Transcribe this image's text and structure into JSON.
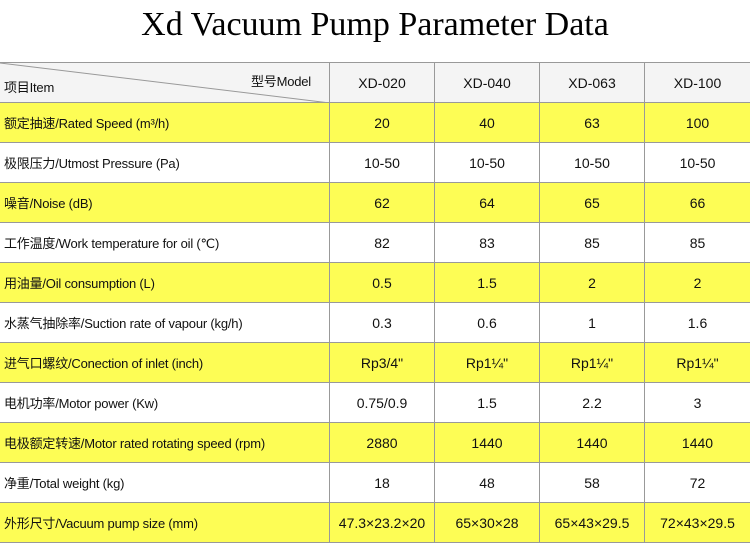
{
  "title": "Xd Vacuum Pump Parameter Data",
  "table": {
    "header": {
      "item": "项目Item",
      "model": "型号Model",
      "columns": [
        "XD-020",
        "XD-040",
        "XD-063",
        "XD-100"
      ]
    },
    "rows": [
      {
        "label": "额定抽速/Rated Speed (m³/h)",
        "values": [
          "20",
          "40",
          "63",
          "100"
        ]
      },
      {
        "label": "极限压力/Utmost Pressure (Pa)",
        "values": [
          "10-50",
          "10-50",
          "10-50",
          "10-50"
        ]
      },
      {
        "label": "噪音/Noise (dB)",
        "values": [
          "62",
          "64",
          "65",
          "66"
        ]
      },
      {
        "label": "工作温度/Work temperature for oil (℃)",
        "values": [
          "82",
          "83",
          "85",
          "85"
        ]
      },
      {
        "label": "用油量/Oil consumption (L)",
        "values": [
          "0.5",
          "1.5",
          "2",
          "2"
        ]
      },
      {
        "label": "水蒸气抽除率/Suction rate of vapour (kg/h)",
        "values": [
          "0.3",
          "0.6",
          "1",
          "1.6"
        ]
      },
      {
        "label": "进气口螺纹/Conection of inlet (inch)",
        "values": [
          "Rp3/4\"",
          "Rp1¼\"",
          "Rp1¼\"",
          "Rp1¼\""
        ]
      },
      {
        "label": "电机功率/Motor power (Kw)",
        "values": [
          "0.75/0.9",
          "1.5",
          "2.2",
          "3"
        ]
      },
      {
        "label": "电极额定转速/Motor rated rotating speed (rpm)",
        "values": [
          "2880",
          "1440",
          "1440",
          "1440"
        ]
      },
      {
        "label": "净重/Total weight (kg)",
        "values": [
          "18",
          "48",
          "58",
          "72"
        ]
      },
      {
        "label": "外形尺寸/Vacuum pump size (mm)",
        "values": [
          "47.3×23.2×20",
          "65×30×28",
          "65×43×29.5",
          "72×43×29.5"
        ]
      }
    ]
  }
}
